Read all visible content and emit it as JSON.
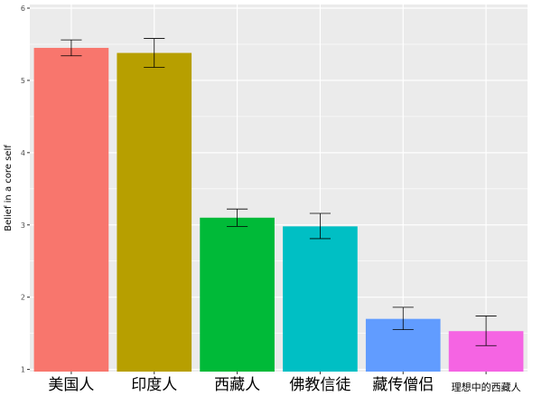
{
  "chart_data": {
    "type": "bar",
    "title": "",
    "xlabel": "",
    "ylabel": "Belief in a core self",
    "ylim": [
      0.97,
      6.05
    ],
    "yticks": [
      1,
      2,
      3,
      4,
      5,
      6
    ],
    "grid": true,
    "legend": "none",
    "categories": [
      "美国人",
      "印度人",
      "西藏人",
      "佛教信徒",
      "藏传僧侣",
      "理想中的西藏人"
    ],
    "values": [
      5.45,
      5.38,
      3.1,
      2.98,
      1.7,
      1.53
    ],
    "error_low": [
      5.34,
      5.18,
      2.98,
      2.81,
      1.55,
      1.33
    ],
    "error_high": [
      5.56,
      5.58,
      3.22,
      3.16,
      1.86,
      1.74
    ],
    "colors": [
      "#F8766D",
      "#B79F00",
      "#00BA38",
      "#00BFC4",
      "#619CFF",
      "#F564E3"
    ],
    "panel_background": "#EBEBEB",
    "gridline_color": "#FFFFFF"
  }
}
